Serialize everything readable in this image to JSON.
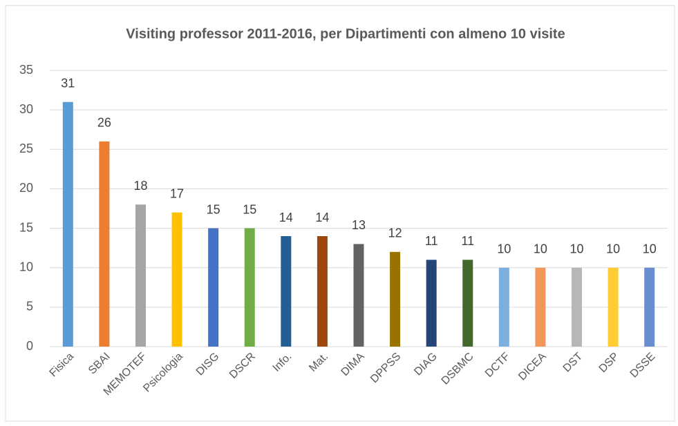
{
  "chart_data": {
    "type": "bar",
    "title": "Visiting professor 2011-2016, per Dipartimenti  con almeno 10 visite",
    "categories": [
      "Fisica",
      "SBAI",
      "MEMOTEF",
      "Psicologia",
      "DISG",
      "DSCR",
      "Info.",
      "Mat.",
      "DIMA",
      "DPPSS",
      "DIAG",
      "DSBMC",
      "DCTF",
      "DICEA",
      "DST",
      "DSP",
      "DSSE"
    ],
    "values": [
      31,
      26,
      18,
      17,
      15,
      15,
      14,
      14,
      13,
      12,
      11,
      11,
      10,
      10,
      10,
      10,
      10
    ],
    "colors": [
      "#5B9BD5",
      "#ED7D31",
      "#A5A5A5",
      "#FFC000",
      "#4472C4",
      "#70AD47",
      "#255E91",
      "#9E480E",
      "#636363",
      "#997300",
      "#264478",
      "#43682B",
      "#7CAFDD",
      "#F1975A",
      "#B7B7B7",
      "#FFCD33",
      "#698ED0"
    ],
    "ylim": [
      0,
      35
    ],
    "yticks": [
      0,
      5,
      10,
      15,
      20,
      25,
      30,
      35
    ],
    "grid": true
  }
}
